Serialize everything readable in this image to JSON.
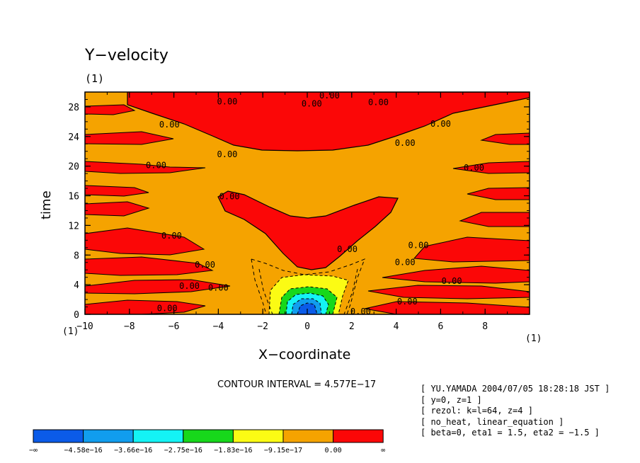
{
  "chart_data": {
    "type": "contour",
    "title": "Y−velocity",
    "subtitle": "(1)",
    "xlabel": "X−coordinate",
    "ylabel": "time",
    "x_unit_left": "(1)",
    "x_unit_right": "(1)",
    "xlim": [
      -10,
      10
    ],
    "ylim": [
      0,
      30
    ],
    "xticks": [
      -10,
      -8,
      -6,
      -4,
      -2,
      0,
      2,
      4,
      6,
      8
    ],
    "xtick_labels": [
      "−10",
      "−8",
      "−6",
      "−4",
      "−2",
      "0",
      "2",
      "4",
      "6",
      "8"
    ],
    "yticks": [
      0,
      4,
      8,
      12,
      16,
      20,
      24,
      28
    ],
    "ytick_labels": [
      "0",
      "4",
      "8",
      "12",
      "16",
      "20",
      "24",
      "28"
    ],
    "contour_interval_text": "CONTOUR INTERVAL = 4.577E−17",
    "contour_labels": [
      {
        "x": -6.3,
        "y": 0.8,
        "text": "0.00"
      },
      {
        "x": -5.3,
        "y": 3.8,
        "text": "0.00"
      },
      {
        "x": -4.0,
        "y": 3.6,
        "text": "0.00"
      },
      {
        "x": -4.6,
        "y": 6.7,
        "text": "0.00"
      },
      {
        "x": -6.1,
        "y": 10.6,
        "text": "0.00"
      },
      {
        "x": -3.5,
        "y": 15.9,
        "text": "0.00"
      },
      {
        "x": -6.8,
        "y": 20.1,
        "text": "0.00"
      },
      {
        "x": -3.6,
        "y": 21.6,
        "text": "0.00"
      },
      {
        "x": -6.2,
        "y": 25.6,
        "text": "0.00"
      },
      {
        "x": -3.6,
        "y": 28.7,
        "text": "0.00"
      },
      {
        "x": 0.2,
        "y": 28.4,
        "text": "0.00"
      },
      {
        "x": 1.0,
        "y": 29.5,
        "text": "0.00"
      },
      {
        "x": 3.2,
        "y": 28.6,
        "text": "0.00"
      },
      {
        "x": 6.0,
        "y": 25.7,
        "text": "0.00"
      },
      {
        "x": 4.4,
        "y": 23.1,
        "text": "0.00"
      },
      {
        "x": 7.5,
        "y": 19.8,
        "text": "0.00"
      },
      {
        "x": 1.8,
        "y": 8.8,
        "text": "0.00"
      },
      {
        "x": 5.0,
        "y": 9.3,
        "text": "0.00"
      },
      {
        "x": 4.4,
        "y": 7.0,
        "text": "0.00"
      },
      {
        "x": 6.5,
        "y": 4.5,
        "text": "0.00"
      },
      {
        "x": 4.5,
        "y": 1.7,
        "text": "0.00"
      },
      {
        "x": 2.4,
        "y": 0.4,
        "text": "0.00"
      }
    ],
    "levels": [
      "−∞",
      "−4.58e−16",
      "−3.66e−16",
      "−2.75e−16",
      "−1.83e−16",
      "−9.15e−17",
      "0.00",
      "∞"
    ],
    "level_colors": [
      "#0b5be8",
      "#119dee",
      "#14f3f5",
      "#17d81b",
      "#fbfb14",
      "#f5a300",
      "#fb0707"
    ],
    "legend_placement": "bottom-left"
  },
  "meta_lines": [
    "[ YU.YAMADA 2004/07/05 18:28:18 JST ]",
    "[ y=0, z=1 ]",
    "[ rezol: k=l=64, z=4 ]",
    "[ no_heat, linear_equation ]",
    "[ beta=0, eta1 = 1.5, eta2 = −1.5 ]"
  ]
}
